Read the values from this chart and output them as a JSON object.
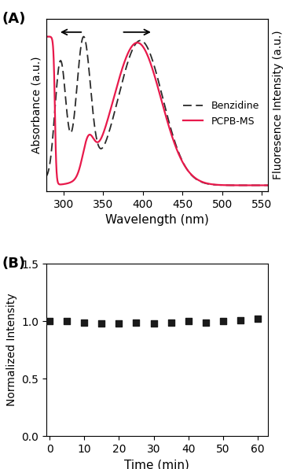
{
  "panel_A": {
    "title": "(A)",
    "xlabel": "Wavelength (nm)",
    "ylabel_left": "Absorbance (a.u.)",
    "ylabel_right": "Fluoresence Intensity (a.u.)",
    "xlim": [
      278,
      558
    ],
    "ylim": [
      -0.04,
      1.12
    ],
    "xticks": [
      300,
      350,
      400,
      450,
      500,
      550
    ],
    "benzidine_color": "#2a2a2a",
    "pcpb_color": "#e8194b",
    "legend_entries": [
      "Benzidine",
      "PCPB-MS"
    ]
  },
  "panel_B": {
    "title": "(B)",
    "xlabel": "Time (min)",
    "ylabel": "Normalized Intensity",
    "xlim": [
      -1,
      63
    ],
    "ylim": [
      0.0,
      1.5
    ],
    "xticks": [
      0,
      10,
      20,
      30,
      40,
      50,
      60
    ],
    "yticks": [
      0.0,
      0.5,
      1.0,
      1.5
    ],
    "time_points": [
      0,
      5,
      10,
      15,
      20,
      25,
      30,
      35,
      40,
      45,
      50,
      55,
      60
    ],
    "intensity_values": [
      1.0,
      1.0,
      0.99,
      0.98,
      0.98,
      0.99,
      0.98,
      0.99,
      1.0,
      0.99,
      1.0,
      1.01,
      1.02
    ],
    "marker_color": "#1a1a1a",
    "marker": "s",
    "marker_size": 6
  },
  "background_color": "#ffffff",
  "font_size": 10,
  "label_font_size": 11
}
